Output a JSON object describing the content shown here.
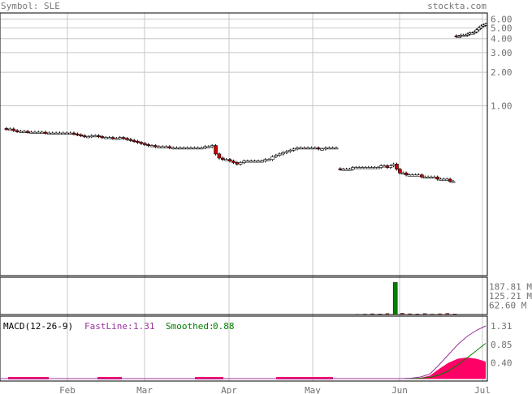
{
  "header": {
    "symbol_label": "Symbol: SLE",
    "brand": "stockta.com"
  },
  "colors": {
    "grid": "#c8c8c8",
    "axis_text": "#707070",
    "up_candle": "#ffffff",
    "down_candle": "#cc0000",
    "volume": "#008000",
    "macd_fast": "#993399",
    "macd_smoothed": "#008000",
    "macd_histogram": "#ff0066"
  },
  "chart_data": [
    {
      "type": "candlestick",
      "panel": "price",
      "scale": "log",
      "x_ticks": [
        "Feb",
        "Mar",
        "Apr",
        "May",
        "Jun",
        "Jul"
      ],
      "y_tick_labels": [
        "6.00",
        "5.00",
        "4.00",
        "3.00",
        "2.00",
        "1.00"
      ],
      "y_tick_values": [
        6,
        5,
        4,
        3,
        2,
        1
      ],
      "ylim": [
        0.03,
        6.8
      ],
      "grid": true,
      "close_values_segment_1": [
        0.62,
        0.62,
        0.6,
        0.59,
        0.59,
        0.59,
        0.58,
        0.58,
        0.58,
        0.58,
        0.58,
        0.57,
        0.57,
        0.57,
        0.57,
        0.57,
        0.57,
        0.57,
        0.57,
        0.56,
        0.55,
        0.54,
        0.53,
        0.53,
        0.54,
        0.54,
        0.53,
        0.52,
        0.52,
        0.52,
        0.51,
        0.51,
        0.52,
        0.51,
        0.5,
        0.49,
        0.48,
        0.47,
        0.46,
        0.45,
        0.44,
        0.44,
        0.43,
        0.43,
        0.43,
        0.43,
        0.42,
        0.42,
        0.42,
        0.42,
        0.42,
        0.42,
        0.42,
        0.42,
        0.42,
        0.42,
        0.43,
        0.43,
        0.44,
        0.37,
        0.34,
        0.33,
        0.33,
        0.32,
        0.31,
        0.3,
        0.31,
        0.32,
        0.32,
        0.32,
        0.32,
        0.32,
        0.32,
        0.33,
        0.33,
        0.35,
        0.36,
        0.37,
        0.38,
        0.39,
        0.4,
        0.41,
        0.42,
        0.42,
        0.42,
        0.42,
        0.42,
        0.42,
        0.41,
        0.41,
        0.42,
        0.42,
        0.42,
        0.42
      ],
      "close_values_segment_2": [
        0.27,
        0.27,
        0.27,
        0.27,
        0.28,
        0.28,
        0.28,
        0.28,
        0.28,
        0.28,
        0.28,
        0.28,
        0.28,
        0.29,
        0.29,
        0.28,
        0.29,
        0.3,
        0.27,
        0.25,
        0.25,
        0.24,
        0.24,
        0.24,
        0.24,
        0.24,
        0.23,
        0.23,
        0.23,
        0.23,
        0.23,
        0.22,
        0.22,
        0.22,
        0.22,
        0.21,
        0.21
      ],
      "close_values_segment_3": [
        4.2,
        4.2,
        4.3,
        4.3,
        4.3,
        4.4,
        4.5,
        4.5,
        4.6,
        4.8,
        5.0,
        5.2,
        5.3,
        5.4
      ]
    },
    {
      "type": "bar",
      "panel": "volume",
      "y_tick_labels": [
        "187.81 M",
        "125.21 M",
        "62.60 M"
      ],
      "y_tick_values": [
        187.81,
        125.21,
        62.6
      ],
      "ylim": [
        0,
        250
      ],
      "spike_values": [
        2,
        3,
        5,
        4,
        6,
        215,
        8,
        5,
        4,
        6,
        3,
        5,
        7,
        4
      ]
    },
    {
      "type": "line",
      "panel": "macd",
      "label": "MACD(12-26-9)",
      "series_labels": {
        "fast": "FastLine:",
        "smoothed": "Smoothed:"
      },
      "fast_value": "1.31",
      "smoothed_value": "0.88",
      "y_tick_labels": [
        "1.31",
        "0.85",
        "0.40"
      ],
      "y_tick_values": [
        1.31,
        0.85,
        0.4
      ],
      "ylim": [
        -0.05,
        1.55
      ],
      "fast_values": [
        0.01,
        0.01,
        0.01,
        0.01,
        0.01,
        0.01,
        0.01,
        0.01,
        0.01,
        0.01,
        0.01,
        0.02,
        0.05,
        0.12,
        0.35,
        0.6,
        0.85,
        1.05,
        1.2,
        1.31
      ],
      "smoothed_values": [
        0.01,
        0.01,
        0.01,
        0.01,
        0.01,
        0.01,
        0.01,
        0.01,
        0.01,
        0.01,
        0.01,
        0.01,
        0.02,
        0.04,
        0.1,
        0.2,
        0.35,
        0.52,
        0.7,
        0.88
      ],
      "histogram_values": [
        0,
        0,
        0,
        0,
        0,
        0,
        0,
        0,
        0,
        0,
        0,
        0.01,
        0.03,
        0.08,
        0.25,
        0.4,
        0.5,
        0.53,
        0.5,
        0.43
      ]
    }
  ]
}
